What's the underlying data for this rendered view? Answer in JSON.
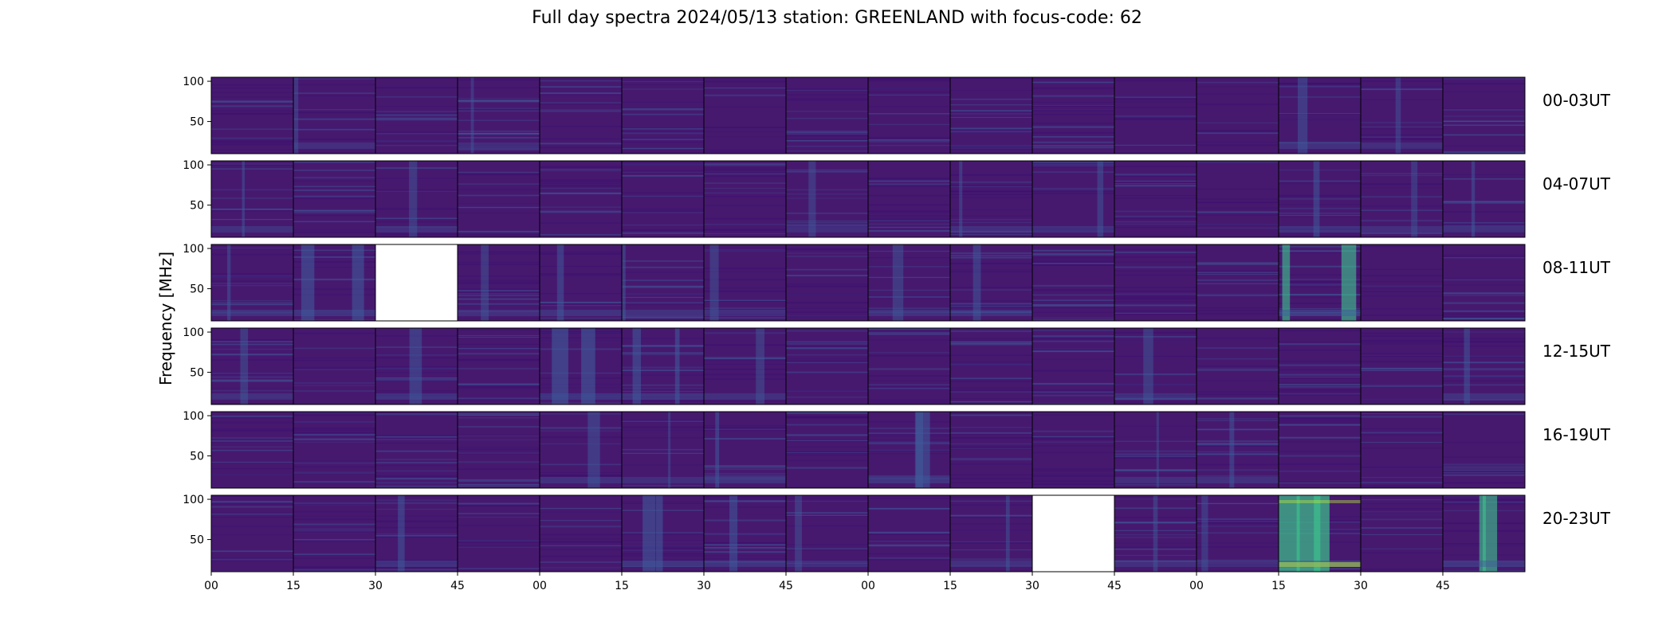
{
  "title": "Full day spectra 2024/05/13 station: GREENLAND with focus-code: 62",
  "chart_data": {
    "type": "heatmap",
    "title": "Full day spectra 2024/05/13 station: GREENLAND with focus-code: 62",
    "ylabel": "Frequency [MHz]",
    "ylim": [
      10,
      105
    ],
    "y_ticks": [
      "100",
      "50"
    ],
    "x_ticks": [
      "00",
      "15",
      "30",
      "45",
      "00",
      "15",
      "30",
      "45",
      "00",
      "15",
      "30",
      "45",
      "00",
      "15",
      "30",
      "45"
    ],
    "colormap": "viridis",
    "colors": {
      "background": "#46196f",
      "low": "#3b0f70",
      "mid": "#3f5b9a",
      "high": "#3dbf8c",
      "peak": "#b6e33e",
      "missing": "#ffffff"
    },
    "rows": [
      {
        "label": "00-03UT",
        "panels": [
          {
            "activity": 0.1,
            "missing": false
          },
          {
            "activity": 0.25,
            "missing": false
          },
          {
            "activity": 0.15,
            "missing": false
          },
          {
            "activity": 0.22,
            "missing": false
          },
          {
            "activity": 0.15,
            "missing": false
          },
          {
            "activity": 0.2,
            "missing": false
          },
          {
            "activity": 0.1,
            "missing": false
          },
          {
            "activity": 0.12,
            "missing": false
          },
          {
            "activity": 0.12,
            "missing": false
          },
          {
            "activity": 0.1,
            "missing": false
          },
          {
            "activity": 0.1,
            "missing": false
          },
          {
            "activity": 0.15,
            "missing": false
          },
          {
            "activity": 0.15,
            "missing": false
          },
          {
            "activity": 0.4,
            "missing": false
          },
          {
            "activity": 0.28,
            "missing": false
          },
          {
            "activity": 0.12,
            "missing": false
          }
        ]
      },
      {
        "label": "04-07UT",
        "panels": [
          {
            "activity": 0.4,
            "missing": false
          },
          {
            "activity": 0.2,
            "missing": false
          },
          {
            "activity": 0.3,
            "missing": false
          },
          {
            "activity": 0.15,
            "missing": false
          },
          {
            "activity": 0.15,
            "missing": false
          },
          {
            "activity": 0.1,
            "missing": false
          },
          {
            "activity": 0.15,
            "missing": false
          },
          {
            "activity": 0.22,
            "missing": false
          },
          {
            "activity": 0.12,
            "missing": false
          },
          {
            "activity": 0.35,
            "missing": false
          },
          {
            "activity": 0.35,
            "missing": false
          },
          {
            "activity": 0.12,
            "missing": false
          },
          {
            "activity": 0.2,
            "missing": false
          },
          {
            "activity": 0.45,
            "missing": false
          },
          {
            "activity": 0.25,
            "missing": false
          },
          {
            "activity": 0.4,
            "missing": false
          }
        ]
      },
      {
        "label": "08-11UT",
        "panels": [
          {
            "activity": 0.4,
            "missing": false
          },
          {
            "activity": 0.55,
            "missing": false
          },
          {
            "activity": 0.0,
            "missing": true
          },
          {
            "activity": 0.3,
            "missing": false
          },
          {
            "activity": 0.45,
            "missing": false
          },
          {
            "activity": 0.4,
            "missing": false
          },
          {
            "activity": 0.3,
            "missing": false
          },
          {
            "activity": 0.15,
            "missing": false
          },
          {
            "activity": 0.35,
            "missing": false
          },
          {
            "activity": 0.4,
            "missing": false
          },
          {
            "activity": 0.2,
            "missing": false
          },
          {
            "activity": 0.15,
            "missing": false
          },
          {
            "activity": 0.15,
            "missing": false
          },
          {
            "activity": 0.7,
            "missing": false
          },
          {
            "activity": 0.2,
            "missing": false
          },
          {
            "activity": 0.2,
            "missing": false
          }
        ]
      },
      {
        "label": "12-15UT",
        "panels": [
          {
            "activity": 0.35,
            "missing": false
          },
          {
            "activity": 0.15,
            "missing": false
          },
          {
            "activity": 0.45,
            "missing": false
          },
          {
            "activity": 0.2,
            "missing": false
          },
          {
            "activity": 0.6,
            "missing": false
          },
          {
            "activity": 0.5,
            "missing": false
          },
          {
            "activity": 0.3,
            "missing": false
          },
          {
            "activity": 0.12,
            "missing": false
          },
          {
            "activity": 0.15,
            "missing": false
          },
          {
            "activity": 0.15,
            "missing": false
          },
          {
            "activity": 0.12,
            "missing": false
          },
          {
            "activity": 0.35,
            "missing": false
          },
          {
            "activity": 0.1,
            "missing": false
          },
          {
            "activity": 0.12,
            "missing": false
          },
          {
            "activity": 0.12,
            "missing": false
          },
          {
            "activity": 0.4,
            "missing": false
          }
        ]
      },
      {
        "label": "16-19UT",
        "panels": [
          {
            "activity": 0.15,
            "missing": false
          },
          {
            "activity": 0.12,
            "missing": false
          },
          {
            "activity": 0.2,
            "missing": false
          },
          {
            "activity": 0.15,
            "missing": false
          },
          {
            "activity": 0.4,
            "missing": false
          },
          {
            "activity": 0.22,
            "missing": false
          },
          {
            "activity": 0.45,
            "missing": false
          },
          {
            "activity": 0.2,
            "missing": false
          },
          {
            "activity": 0.55,
            "missing": false
          },
          {
            "activity": 0.15,
            "missing": false
          },
          {
            "activity": 0.15,
            "missing": false
          },
          {
            "activity": 0.25,
            "missing": false
          },
          {
            "activity": 0.4,
            "missing": false
          },
          {
            "activity": 0.12,
            "missing": false
          },
          {
            "activity": 0.2,
            "missing": false
          },
          {
            "activity": 0.12,
            "missing": false
          }
        ]
      },
      {
        "label": "20-23UT",
        "panels": [
          {
            "activity": 0.2,
            "missing": false
          },
          {
            "activity": 0.15,
            "missing": false
          },
          {
            "activity": 0.45,
            "missing": false
          },
          {
            "activity": 0.12,
            "missing": false
          },
          {
            "activity": 0.12,
            "missing": false
          },
          {
            "activity": 0.55,
            "missing": false
          },
          {
            "activity": 0.45,
            "missing": false
          },
          {
            "activity": 0.3,
            "missing": false
          },
          {
            "activity": 0.2,
            "missing": false
          },
          {
            "activity": 0.35,
            "missing": false
          },
          {
            "activity": 0.0,
            "missing": true
          },
          {
            "activity": 0.3,
            "missing": false
          },
          {
            "activity": 0.25,
            "missing": false
          },
          {
            "activity": 0.9,
            "missing": false
          },
          {
            "activity": 0.15,
            "missing": false
          },
          {
            "activity": 0.7,
            "missing": false
          }
        ]
      }
    ]
  }
}
